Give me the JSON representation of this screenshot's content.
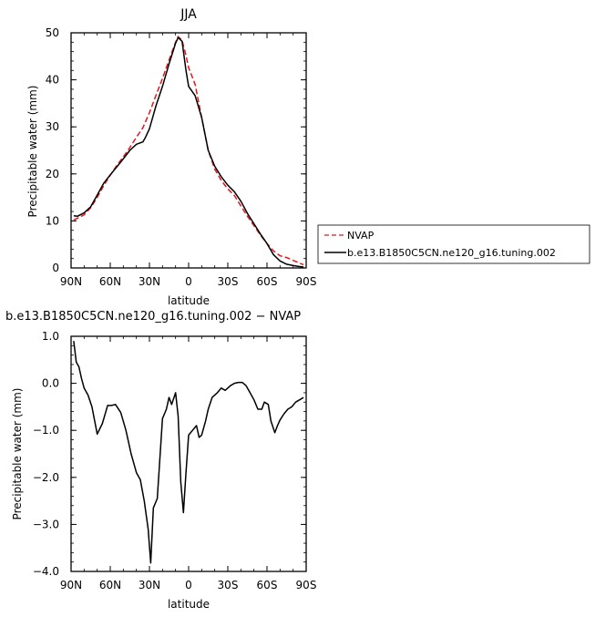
{
  "chart_data": [
    {
      "type": "line",
      "title": "JJA",
      "xlabel": "latitude",
      "ylabel": "Precipitable water  (mm)",
      "xlim": [
        90,
        -90
      ],
      "ylim": [
        0,
        50
      ],
      "xticks": [
        90,
        60,
        30,
        0,
        -30,
        -60,
        -90
      ],
      "xtick_labels": [
        "90N",
        "60N",
        "30N",
        "0",
        "30S",
        "60S",
        "90S"
      ],
      "yticks": [
        0,
        10,
        20,
        30,
        40,
        50
      ],
      "ytick_labels": [
        "0",
        "10",
        "20",
        "30",
        "40",
        "50"
      ],
      "legend_position": "right",
      "series": [
        {
          "name": "NVAP",
          "color": "#e8141c",
          "dash": "dashed",
          "x": [
            88,
            85,
            80,
            75,
            70,
            65,
            60,
            55,
            50,
            45,
            40,
            35,
            30,
            25,
            20,
            15,
            10,
            8,
            5,
            2,
            0,
            -5,
            -10,
            -15,
            -20,
            -25,
            -30,
            -35,
            -40,
            -45,
            -50,
            -55,
            -60,
            -65,
            -70,
            -75,
            -80,
            -85,
            -88
          ],
          "y": [
            10.2,
            10.6,
            11.3,
            12.8,
            15.0,
            17.5,
            19.7,
            21.8,
            23.6,
            25.6,
            27.8,
            29.8,
            33.0,
            36.7,
            40.3,
            44.2,
            48.0,
            49.2,
            48.4,
            45.2,
            42.6,
            39.0,
            32.0,
            25.0,
            21.0,
            18.6,
            16.8,
            15.4,
            13.2,
            11.0,
            9.0,
            7.0,
            5.2,
            3.6,
            2.6,
            2.2,
            1.6,
            1.0,
            0.7
          ]
        },
        {
          "name": "b.e13.B1850C5CN.ne120_g16.tuning.002",
          "color": "#000000",
          "dash": "solid",
          "x": [
            88,
            85,
            80,
            75,
            70,
            65,
            60,
            55,
            50,
            45,
            40,
            35,
            33,
            30,
            25,
            20,
            15,
            10,
            8,
            5,
            2,
            0,
            -5,
            -10,
            -15,
            -20,
            -25,
            -30,
            -35,
            -40,
            -45,
            -50,
            -55,
            -60,
            -65,
            -70,
            -75,
            -80,
            -85,
            -88
          ],
          "y": [
            11.1,
            11.0,
            11.7,
            13.0,
            15.5,
            18.0,
            19.8,
            21.5,
            23.2,
            25.0,
            26.3,
            26.8,
            27.8,
            29.6,
            34.5,
            38.6,
            43.4,
            47.8,
            49.0,
            48.2,
            42.0,
            38.6,
            36.6,
            32.0,
            25.0,
            21.6,
            19.4,
            17.6,
            16.2,
            14.2,
            11.6,
            9.4,
            7.2,
            5.2,
            2.8,
            1.5,
            0.8,
            0.5,
            0.3,
            0.2
          ]
        }
      ]
    },
    {
      "type": "line",
      "title": "b.e13.B1850C5CN.ne120_g16.tuning.002 − NVAP",
      "xlabel": "latitude",
      "ylabel": "Precipitable water  (mm)",
      "xlim": [
        90,
        -90
      ],
      "ylim": [
        -4,
        1
      ],
      "xticks": [
        90,
        60,
        30,
        0,
        -30,
        -60,
        -90
      ],
      "xtick_labels": [
        "90N",
        "60N",
        "30N",
        "0",
        "30S",
        "60S",
        "90S"
      ],
      "yticks": [
        1,
        0,
        -1,
        -2,
        -3,
        -4
      ],
      "ytick_labels": [
        "1.0",
        "0.0",
        "−1.0",
        "−2.0",
        "−3.0",
        "−4.0"
      ],
      "series": [
        {
          "color": "#000000",
          "dash": "solid",
          "x": [
            88,
            86,
            84,
            82,
            80,
            77,
            74,
            70,
            66,
            62,
            59,
            56,
            52,
            48,
            44,
            40,
            37,
            34,
            31,
            29,
            27,
            24,
            20,
            17,
            15,
            13,
            10,
            8,
            6,
            4,
            2,
            0,
            -3,
            -6,
            -8,
            -10,
            -13,
            -15,
            -18,
            -22,
            -25,
            -28,
            -32,
            -35,
            -38,
            -41,
            -44,
            -47,
            -50,
            -53,
            -56,
            -58,
            -61,
            -63,
            -66,
            -68,
            -70,
            -73,
            -76,
            -79,
            -82,
            -85,
            -88
          ],
          "y": [
            0.9,
            0.45,
            0.35,
            0.1,
            -0.1,
            -0.25,
            -0.5,
            -1.08,
            -0.85,
            -0.47,
            -0.47,
            -0.45,
            -0.62,
            -1.0,
            -1.5,
            -1.9,
            -2.05,
            -2.5,
            -3.1,
            -3.82,
            -2.65,
            -2.45,
            -0.75,
            -0.55,
            -0.3,
            -0.45,
            -0.2,
            -0.7,
            -2.1,
            -2.75,
            -1.9,
            -1.1,
            -1.0,
            -0.9,
            -1.15,
            -1.1,
            -0.8,
            -0.55,
            -0.3,
            -0.2,
            -0.1,
            -0.15,
            -0.05,
            0.0,
            0.02,
            0.02,
            -0.05,
            -0.2,
            -0.35,
            -0.55,
            -0.55,
            -0.4,
            -0.45,
            -0.8,
            -1.05,
            -0.9,
            -0.78,
            -0.65,
            -0.55,
            -0.5,
            -0.4,
            -0.35,
            -0.3
          ]
        }
      ]
    }
  ]
}
